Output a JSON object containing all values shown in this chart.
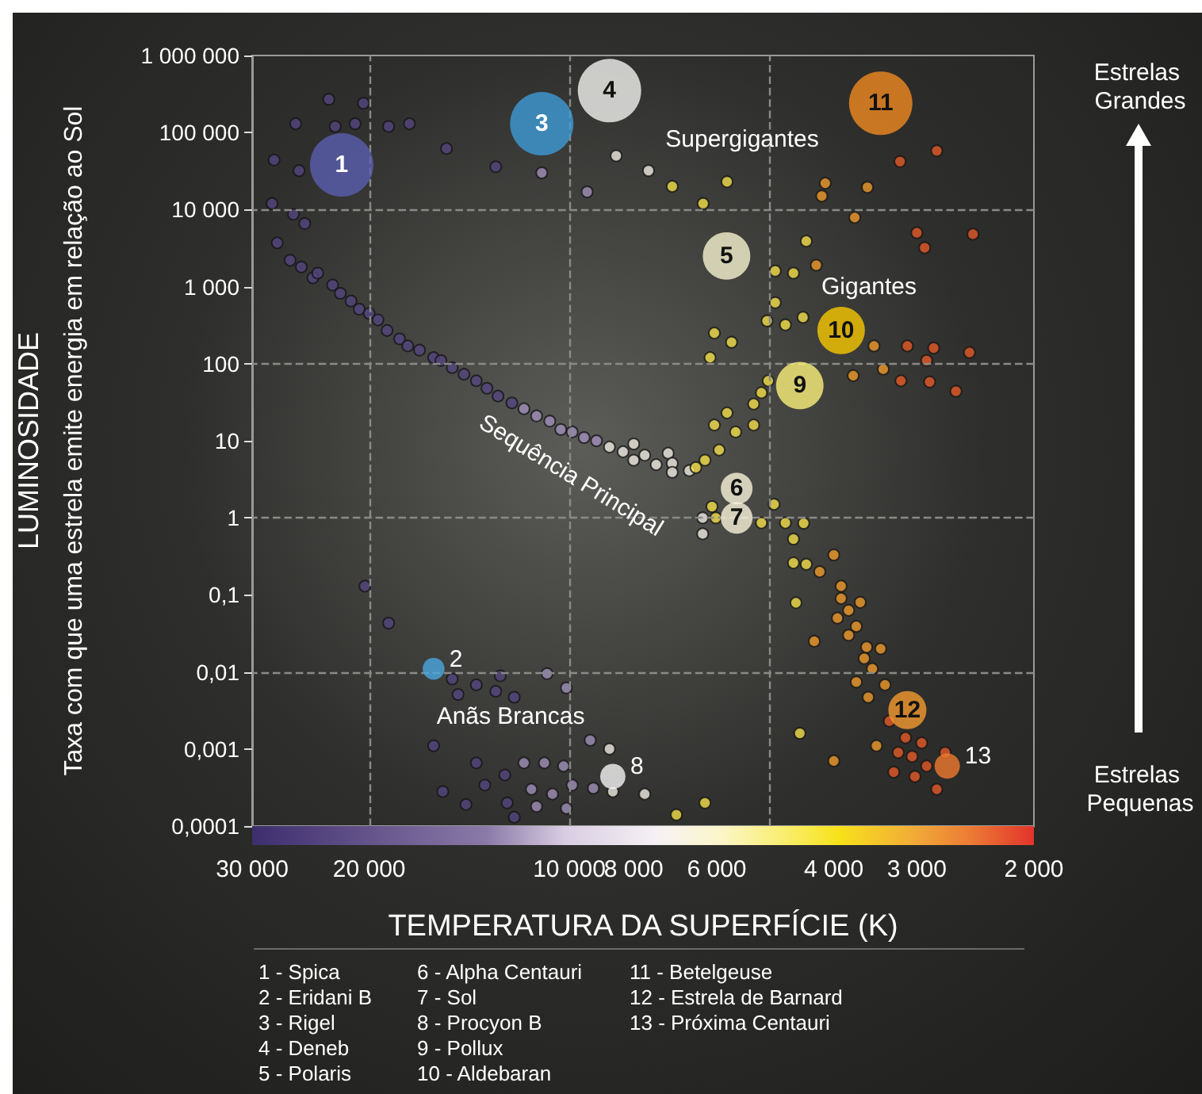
{
  "chart_data": {
    "type": "scatter",
    "xlabel": "TEMPERATURA DA SUPERFÍCIE (K)",
    "ylabel": "LUMINOSIDADE",
    "log": "xy",
    "marker": "circle",
    "xlim": [
      30000,
      2000
    ],
    "ylim": [
      0.0001,
      1000000
    ],
    "xticks": [
      {
        "value": 30000,
        "label": "30 000"
      },
      {
        "value": 20000,
        "label": "20 000"
      },
      {
        "value": 10000,
        "label": "10 000"
      },
      {
        "value": 8000,
        "label": "8 000"
      },
      {
        "value": 6000,
        "label": "6 000"
      },
      {
        "value": 4000,
        "label": "4 000"
      },
      {
        "value": 3000,
        "label": "3 000"
      },
      {
        "value": 2000,
        "label": "2 000"
      }
    ],
    "yticks": [
      {
        "value": 0.0001,
        "label": "0,0001"
      },
      {
        "value": 0.001,
        "label": "0,001"
      },
      {
        "value": 0.01,
        "label": "0,01"
      },
      {
        "value": 0.1,
        "label": "0,1"
      },
      1,
      10,
      100,
      {
        "value": 1000,
        "label": "1 000"
      },
      {
        "value": 10000,
        "label": "10 000"
      },
      {
        "value": 100000,
        "label": "100 000"
      },
      {
        "value": 1000000,
        "label": "1 000 000"
      }
    ],
    "ref_lines": [
      {
        "axis": "x",
        "value": 20000,
        "color": "#8a8a88",
        "line_style": "dashed"
      },
      {
        "axis": "x",
        "value": 10000,
        "color": "#8a8a88",
        "line_style": "dashed"
      },
      {
        "axis": "x",
        "value": 5000,
        "color": "#8a8a88",
        "line_style": "dashed"
      },
      {
        "axis": "y",
        "value": 10000,
        "color": "#8a8a88",
        "line_style": "dashed"
      },
      {
        "axis": "y",
        "value": 100,
        "color": "#8a8a88",
        "line_style": "dashed"
      },
      {
        "axis": "y",
        "value": 1,
        "color": "#8a8a88",
        "line_style": "dashed"
      },
      {
        "axis": "y",
        "value": 0.01,
        "color": "#8a8a88",
        "line_style": "dashed"
      }
    ],
    "series": [
      {
        "color": "#54467e",
        "x": [
          25800,
          23000,
          20400,
          21000,
          22500,
          27800,
          25500,
          28000,
          18700,
          17400,
          15300,
          12900,
          26000,
          25000,
          27500,
          26300,
          25300,
          24300,
          23900,
          22700,
          22100,
          21300,
          20700,
          20000,
          19400,
          18800,
          18000,
          17500,
          16800,
          16000,
          15600,
          15000,
          14400,
          13800,
          13300,
          12800,
          12200,
          20300,
          18700,
          15000,
          14700,
          13800,
          12900,
          12700,
          12100,
          16000,
          15500,
          14300,
          13800,
          13400,
          12500,
          12400,
          12100
        ],
        "values": [
          130000,
          270000,
          240000,
          130000,
          120000,
          44000,
          32000,
          12000,
          120000,
          130000,
          62000,
          36000,
          8700,
          6600,
          3700,
          2200,
          1800,
          1300,
          1500,
          1050,
          820,
          650,
          510,
          450,
          370,
          270,
          210,
          170,
          150,
          120,
          110,
          89,
          73,
          60,
          48,
          38,
          31,
          0.13,
          0.043,
          0.0081,
          0.0051,
          0.0068,
          0.0056,
          0.0089,
          0.0047,
          0.0011,
          0.00028,
          0.00019,
          0.00066,
          0.00034,
          0.00046,
          0.0002,
          0.00013
        ]
      },
      {
        "color": "#9f8fb8",
        "x": [
          11000,
          9400,
          11700,
          11200,
          10700,
          10300,
          9900,
          9500,
          9100,
          10800,
          10100,
          9300,
          11700,
          11400,
          11200,
          10900,
          10600,
          10200,
          9900,
          10100,
          9200
        ],
        "values": [
          30000,
          17000,
          26,
          21,
          18,
          14,
          13,
          11,
          10,
          0.0095,
          0.0062,
          0.0013,
          0.00066,
          0.0003,
          0.00018,
          0.00066,
          0.00026,
          0.0006,
          0.00034,
          0.00017,
          0.00031
        ]
      },
      {
        "color": "#eeeae0",
        "x": [
          7600,
          8500,
          8700,
          8300,
          8000,
          8000,
          7700,
          7400,
          7100,
          7000,
          7000,
          6600,
          8700,
          8600,
          7700,
          6300,
          6300
        ],
        "values": [
          32000,
          50000,
          8.3,
          7.2,
          9.1,
          5.6,
          6.5,
          4.9,
          6.9,
          5.1,
          3.9,
          4.1,
          0.001,
          0.00028,
          0.00026,
          1,
          0.62
        ]
      },
      {
        "color": "#f3df4a",
        "x": [
          7000,
          6450,
          6250,
          6100,
          6020,
          5950,
          6050,
          5620,
          5790,
          5280,
          5140,
          5280,
          5020,
          5140,
          4920,
          4730,
          4600,
          4440,
          4600,
          4400,
          4560,
          6900,
          6250,
          5790,
          6290,
          6050,
          5700,
          5040,
          4730,
          4900,
          4900,
          4600,
          4400,
          6140,
          4500,
          4450
        ],
        "values": [
          20000,
          4.5,
          5.6,
          1.4,
          1,
          7.6,
          16,
          13,
          23,
          30,
          42,
          16,
          60,
          0.86,
          1.5,
          0.86,
          0.53,
          0.85,
          0.26,
          0.25,
          0.079,
          0.00014,
          0.0002,
          23000,
          12000,
          250,
          190,
          360,
          320,
          620,
          1600,
          1500,
          3900,
          120,
          0.0016,
          400
        ]
      },
      {
        "color": "#ee9a2c",
        "x": [
          4280,
          4200,
          4000,
          3900,
          3800,
          3950,
          3700,
          3570,
          3500,
          3700,
          3550,
          3350,
          3450,
          4000,
          3720,
          3480,
          3370,
          3740,
          4120,
          4170,
          3560,
          4250,
          3900,
          3650,
          3800,
          3600,
          3400
        ],
        "values": [
          0.025,
          0.2,
          0.33,
          0.13,
          0.063,
          0.05,
          0.039,
          0.021,
          0.011,
          0.0074,
          0.0047,
          0.0068,
          0.0011,
          0.0007,
          7900,
          170,
          85,
          70,
          22000,
          15000,
          19500,
          1900,
          0.09,
          0.08,
          0.03,
          0.015,
          0.02
        ]
      },
      {
        "color": "#e25a28",
        "x": [
          3100,
          2830,
          2900,
          3170,
          2870,
          2620,
          2500,
          3000,
          2920,
          2470,
          3180,
          2800,
          3300,
          3200,
          3120,
          3020,
          2800,
          2720,
          2950,
          2900,
          3050,
          3250
        ],
        "values": [
          170,
          160,
          110,
          60,
          58,
          44,
          140,
          5000,
          3200,
          4800,
          42000,
          58000,
          0.0023,
          0.0009,
          0.0014,
          0.00044,
          0.0003,
          0.0009,
          0.0012,
          0.0006,
          0.0008,
          0.0005
        ]
      },
      {
        "type": "bubble",
        "x": [
          22000,
          16000,
          11000,
          8700,
          5800,
          5600,
          5600,
          8600,
          4500,
          3900,
          3400,
          3100,
          2700
        ],
        "values": [
          38000,
          0.011,
          130000,
          350000,
          2500,
          2.4,
          1,
          0.00044,
          52,
          270,
          240000,
          0.0032,
          0.0006
        ],
        "sizes": [
          1,
          0.12,
          1,
          1,
          0.56,
          0.25,
          0.25,
          0.16,
          0.56,
          0.56,
          1,
          0.36,
          0.16
        ],
        "colors": [
          "#5a5fb0",
          "#4aa8e0",
          "#3d9bd6",
          "#f2f2f0",
          "#f8f3d0",
          "#f8f3d8",
          "#f8f3d8",
          "#f5f5f5",
          "#fbf07a",
          "#f8c800",
          "#f08a20",
          "#f59a30",
          "#f07a30"
        ]
      }
    ],
    "annotations": [
      "Taxa com que uma estrela emite energia em relação ao Sol",
      "Estrelas Grandes",
      "Estrelas Pequenas",
      "1 - Spica",
      "2 - Eridani B",
      "3 - Rigel",
      "4 - Deneb",
      "5 - Polaris",
      "6 - Alpha Centauri",
      "7 - Sol",
      "8 - Procyon B",
      "9 - Pollux",
      "10 - Aldebaran",
      "11 - Betelgeuse",
      "12 - Estrela de Barnard",
      "13 - Próxima Centauri",
      "Supergigantes",
      "Gigantes",
      "Sequência Principal",
      "Anãs Brancas",
      {
        "text": "1",
        "x": 22000,
        "y": 38000
      },
      {
        "text": "2",
        "x": 16000,
        "y": 0.011
      },
      {
        "text": "3",
        "x": 11000,
        "y": 130000
      },
      {
        "text": "4",
        "x": 8700,
        "y": 350000
      },
      {
        "text": "5",
        "x": 5800,
        "y": 2500
      },
      {
        "text": "6",
        "x": 5600,
        "y": 2.4
      },
      {
        "text": "7",
        "x": 5600,
        "y": 1
      },
      {
        "text": "8",
        "x": 8600,
        "y": 0.00044
      },
      {
        "text": "9",
        "x": 4500,
        "y": 52
      },
      {
        "text": "10",
        "x": 3900,
        "y": 270
      },
      {
        "text": "11",
        "x": 3400,
        "y": 240000
      },
      {
        "text": "12",
        "x": 3100,
        "y": 0.0032
      },
      {
        "text": "13",
        "x": 2700,
        "y": 0.0006
      }
    ]
  }
}
